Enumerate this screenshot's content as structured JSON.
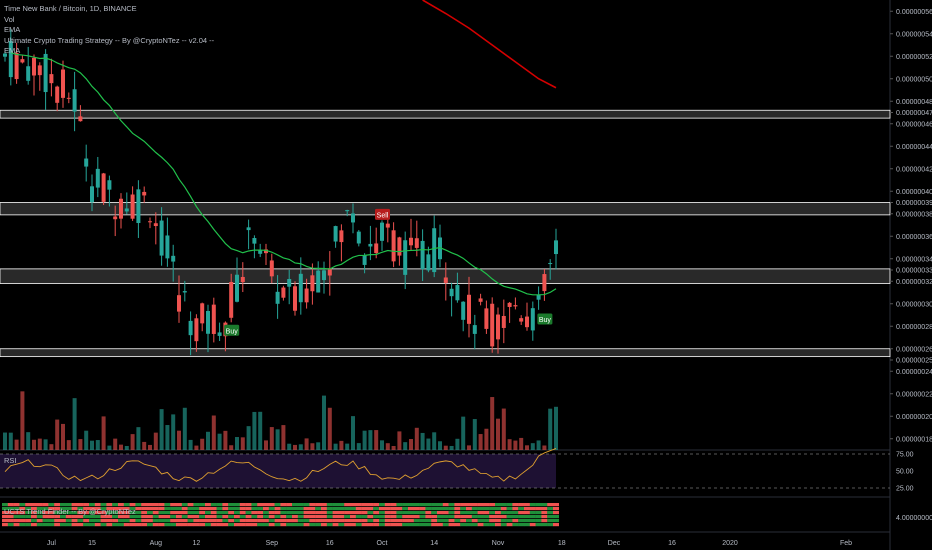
{
  "header": {
    "symbol": "Time New Bank / Bitcoin, 1D, BINANCE",
    "lines": [
      "Vol",
      "EMA",
      "Ultimate Crypto Trading Strategy -- By @CryptoNTez -- v2.04 --",
      "EMA"
    ]
  },
  "rsi_label": "RSI",
  "trend_label": "UCTS Trend Finder -- By @CryptoNTez",
  "colors": {
    "up": "#26a69a",
    "down": "#ef5350",
    "ema_fast": "#21c04b",
    "ema_slow": "#d40000",
    "zone": "#ffffff",
    "rsi_fill": "#1e1133",
    "rsi_line": "#e0a030",
    "buy": "#1b7a2c",
    "sell": "#b71c1c"
  },
  "chart_data": {
    "type": "candlestick",
    "price_axis_ticks": [
      "0.00000056",
      "0.00000054",
      "0.00000052",
      "0.00000050",
      "0.00000048",
      "0.00000047",
      "0.00000046",
      "0.00000044",
      "0.00000042",
      "0.00000040",
      "0.00000039",
      "0.00000038",
      "0.00000036",
      "0.00000034",
      "0.00000033",
      "0.00000032",
      "0.00000030",
      "0.00000028",
      "0.00000026",
      "0.00000025",
      "0.00000024",
      "0.00000022",
      "0.00000020",
      "0.00000018"
    ],
    "rsi_ticks": [
      "75.00",
      "50.00",
      "25.00"
    ],
    "trend_ticks": [
      "4.00000000"
    ],
    "x_ticks": [
      "Jul",
      "15",
      "Aug",
      "12",
      "Sep",
      "16",
      "Oct",
      "14",
      "Nov",
      "18",
      "Dec",
      "16",
      "2020",
      "Feb"
    ],
    "ylim": [
      1.7e-07,
      5.7e-07
    ],
    "zones": [
      [
        4.65e-07,
        4.72e-07
      ],
      [
        3.79e-07,
        3.9e-07
      ],
      [
        3.18e-07,
        3.31e-07
      ],
      [
        2.53e-07,
        2.6e-07
      ]
    ],
    "signals": [
      {
        "label": "Buy",
        "day": 39,
        "price": 2.76e-07
      },
      {
        "label": "Sell",
        "day": 65,
        "price": 3.79e-07
      },
      {
        "label": "Buy",
        "day": 93,
        "price": 2.86e-07
      }
    ],
    "ema_slow": [
      [
        72,
        5.7e-07
      ],
      [
        76,
        5.58e-07
      ],
      [
        80,
        5.45e-07
      ],
      [
        84,
        5.3e-07
      ],
      [
        88,
        5.15e-07
      ],
      [
        92,
        5e-07
      ],
      [
        95,
        4.92e-07
      ]
    ],
    "last_day": 95
  }
}
